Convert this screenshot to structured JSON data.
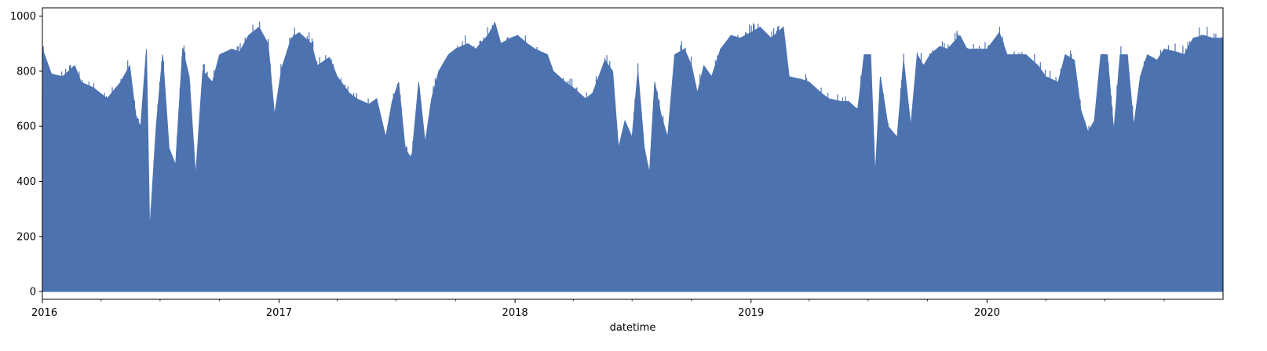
{
  "chart_data": {
    "type": "area",
    "title": "",
    "xlabel": "datetime",
    "ylabel": "",
    "xlim": [
      "2016-01-01",
      "2020-12-31"
    ],
    "ylim": [
      -28,
      1030
    ],
    "x_ticks": [
      "2016",
      "2017",
      "2018",
      "2019",
      "2020"
    ],
    "x_tick_dates": [
      "2016-01-01",
      "2017-01-01",
      "2018-01-01",
      "2019-01-01",
      "2020-01-01"
    ],
    "y_ticks": [
      0,
      200,
      400,
      600,
      800,
      1000
    ],
    "grid": false,
    "legend": "none",
    "colors": {
      "series": "#4c72b0"
    },
    "series": [
      {
        "envelope_points": [
          [
            "2016-01-01",
            880
          ],
          [
            "2016-01-15",
            790
          ],
          [
            "2016-02-01",
            780
          ],
          [
            "2016-02-20",
            820
          ],
          [
            "2016-03-01",
            760
          ],
          [
            "2016-03-20",
            740
          ],
          [
            "2016-04-10",
            700
          ],
          [
            "2016-05-01",
            760
          ],
          [
            "2016-05-15",
            820
          ],
          [
            "2016-05-25",
            630
          ],
          [
            "2016-06-01",
            600
          ],
          [
            "2016-06-10",
            880
          ],
          [
            "2016-06-15",
            220
          ],
          [
            "2016-06-25",
            600
          ],
          [
            "2016-07-05",
            860
          ],
          [
            "2016-07-15",
            520
          ],
          [
            "2016-07-25",
            460
          ],
          [
            "2016-08-05",
            880
          ],
          [
            "2016-08-15",
            780
          ],
          [
            "2016-08-25",
            420
          ],
          [
            "2016-09-05",
            800
          ],
          [
            "2016-09-20",
            760
          ],
          [
            "2016-10-01",
            860
          ],
          [
            "2016-10-20",
            880
          ],
          [
            "2016-11-01",
            870
          ],
          [
            "2016-11-15",
            930
          ],
          [
            "2016-12-01",
            960
          ],
          [
            "2016-12-15",
            900
          ],
          [
            "2016-12-25",
            640
          ],
          [
            "2017-01-05",
            810
          ],
          [
            "2017-01-20",
            920
          ],
          [
            "2017-02-01",
            940
          ],
          [
            "2017-02-20",
            900
          ],
          [
            "2017-03-01",
            820
          ],
          [
            "2017-03-20",
            850
          ],
          [
            "2017-04-01",
            780
          ],
          [
            "2017-04-20",
            720
          ],
          [
            "2017-05-01",
            700
          ],
          [
            "2017-05-20",
            680
          ],
          [
            "2017-06-01",
            700
          ],
          [
            "2017-06-15",
            560
          ],
          [
            "2017-06-25",
            690
          ],
          [
            "2017-07-05",
            760
          ],
          [
            "2017-07-15",
            520
          ],
          [
            "2017-07-25",
            480
          ],
          [
            "2017-08-05",
            760
          ],
          [
            "2017-08-15",
            540
          ],
          [
            "2017-08-25",
            700
          ],
          [
            "2017-09-05",
            800
          ],
          [
            "2017-09-20",
            860
          ],
          [
            "2017-10-01",
            880
          ],
          [
            "2017-10-20",
            900
          ],
          [
            "2017-11-01",
            880
          ],
          [
            "2017-11-20",
            930
          ],
          [
            "2017-12-01",
            975
          ],
          [
            "2017-12-10",
            900
          ],
          [
            "2017-12-25",
            920
          ],
          [
            "2018-01-05",
            930
          ],
          [
            "2018-01-20",
            900
          ],
          [
            "2018-02-01",
            880
          ],
          [
            "2018-02-20",
            860
          ],
          [
            "2018-03-01",
            800
          ],
          [
            "2018-03-20",
            760
          ],
          [
            "2018-04-01",
            740
          ],
          [
            "2018-04-20",
            700
          ],
          [
            "2018-05-01",
            720
          ],
          [
            "2018-05-20",
            840
          ],
          [
            "2018-06-01",
            800
          ],
          [
            "2018-06-10",
            520
          ],
          [
            "2018-06-20",
            620
          ],
          [
            "2018-07-01",
            560
          ],
          [
            "2018-07-10",
            800
          ],
          [
            "2018-07-20",
            520
          ],
          [
            "2018-07-28",
            430
          ],
          [
            "2018-08-05",
            760
          ],
          [
            "2018-08-15",
            640
          ],
          [
            "2018-08-25",
            560
          ],
          [
            "2018-09-05",
            860
          ],
          [
            "2018-09-20",
            880
          ],
          [
            "2018-10-01",
            820
          ],
          [
            "2018-10-10",
            720
          ],
          [
            "2018-10-20",
            820
          ],
          [
            "2018-11-01",
            780
          ],
          [
            "2018-11-15",
            880
          ],
          [
            "2018-12-01",
            930
          ],
          [
            "2018-12-15",
            920
          ],
          [
            "2019-01-01",
            940
          ],
          [
            "2019-01-15",
            960
          ],
          [
            "2019-02-01",
            920
          ],
          [
            "2019-02-20",
            960
          ],
          [
            "2019-03-01",
            780
          ],
          [
            "2019-03-20",
            770
          ],
          [
            "2019-04-01",
            760
          ],
          [
            "2019-04-20",
            720
          ],
          [
            "2019-05-01",
            700
          ],
          [
            "2019-05-20",
            690
          ],
          [
            "2019-06-01",
            690
          ],
          [
            "2019-06-15",
            660
          ],
          [
            "2019-06-25",
            860
          ],
          [
            "2019-07-05",
            860
          ],
          [
            "2019-07-12",
            420
          ],
          [
            "2019-07-20",
            780
          ],
          [
            "2019-08-01",
            600
          ],
          [
            "2019-08-15",
            560
          ],
          [
            "2019-08-25",
            840
          ],
          [
            "2019-09-05",
            600
          ],
          [
            "2019-09-15",
            860
          ],
          [
            "2019-09-25",
            820
          ],
          [
            "2019-10-05",
            860
          ],
          [
            "2019-10-20",
            890
          ],
          [
            "2019-11-01",
            880
          ],
          [
            "2019-11-20",
            930
          ],
          [
            "2019-12-01",
            880
          ],
          [
            "2019-12-15",
            880
          ],
          [
            "2020-01-01",
            880
          ],
          [
            "2020-01-20",
            940
          ],
          [
            "2020-02-01",
            860
          ],
          [
            "2020-02-20",
            860
          ],
          [
            "2020-03-01",
            860
          ],
          [
            "2020-03-20",
            820
          ],
          [
            "2020-04-01",
            780
          ],
          [
            "2020-04-20",
            760
          ],
          [
            "2020-05-01",
            860
          ],
          [
            "2020-05-15",
            840
          ],
          [
            "2020-05-25",
            660
          ],
          [
            "2020-06-05",
            580
          ],
          [
            "2020-06-15",
            620
          ],
          [
            "2020-06-25",
            860
          ],
          [
            "2020-07-05",
            860
          ],
          [
            "2020-07-15",
            580
          ],
          [
            "2020-07-25",
            860
          ],
          [
            "2020-08-05",
            860
          ],
          [
            "2020-08-15",
            600
          ],
          [
            "2020-08-25",
            780
          ],
          [
            "2020-09-05",
            860
          ],
          [
            "2020-09-20",
            840
          ],
          [
            "2020-10-01",
            880
          ],
          [
            "2020-10-20",
            870
          ],
          [
            "2020-11-01",
            860
          ],
          [
            "2020-11-15",
            920
          ],
          [
            "2020-12-01",
            930
          ],
          [
            "2020-12-15",
            920
          ],
          [
            "2020-12-31",
            920
          ]
        ]
      }
    ]
  }
}
